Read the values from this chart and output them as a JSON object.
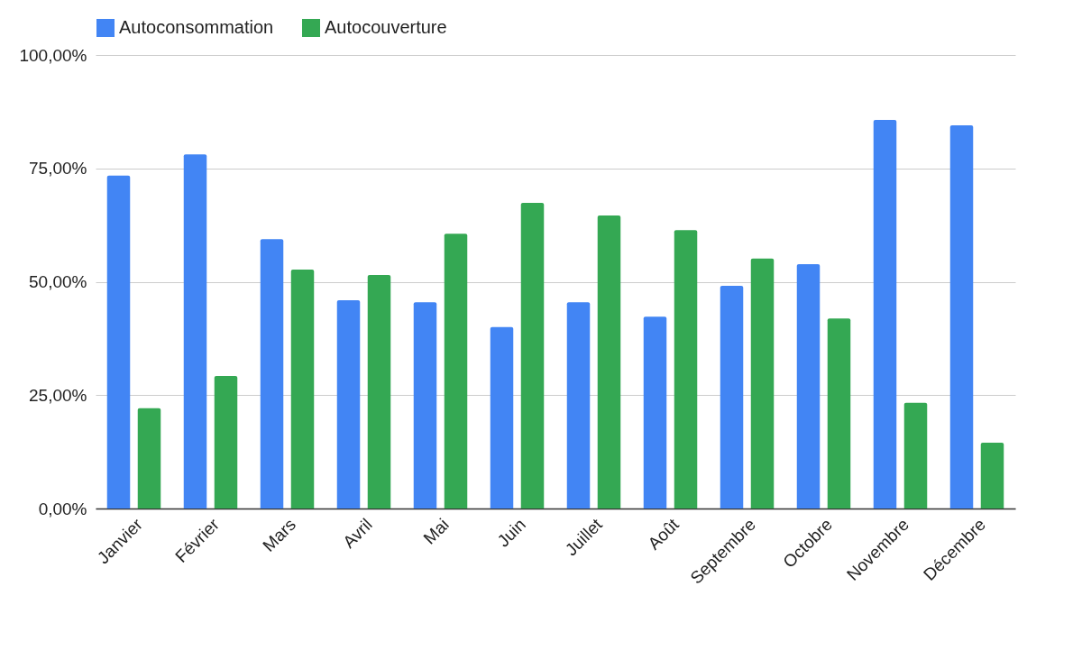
{
  "chart_data": {
    "type": "bar",
    "categories": [
      "Janvier",
      "Février",
      "Mars",
      "Avril",
      "Mai",
      "Juin",
      "Juillet",
      "Août",
      "Septembre",
      "Octobre",
      "Novembre",
      "Décembre"
    ],
    "series": [
      {
        "name": "Autoconsommation",
        "color": "#4285f4",
        "values": [
          73.4,
          78.1,
          59.4,
          45.9,
          45.5,
          40.0,
          45.5,
          42.3,
          49.1,
          53.9,
          85.7,
          84.5
        ]
      },
      {
        "name": "Autocouverture",
        "color": "#34a853",
        "values": [
          22.1,
          29.2,
          52.7,
          51.5,
          60.6,
          67.4,
          64.6,
          61.4,
          55.1,
          41.9,
          23.3,
          14.5
        ]
      }
    ],
    "ylim": [
      0,
      100
    ],
    "yticks": [
      {
        "value": 0,
        "label": "0,00%"
      },
      {
        "value": 25,
        "label": "25,00%"
      },
      {
        "value": 50,
        "label": "50,00%"
      },
      {
        "value": 75,
        "label": "75,00%"
      },
      {
        "value": 100,
        "label": "100,00%"
      }
    ],
    "grid": "y",
    "legend": "top"
  }
}
